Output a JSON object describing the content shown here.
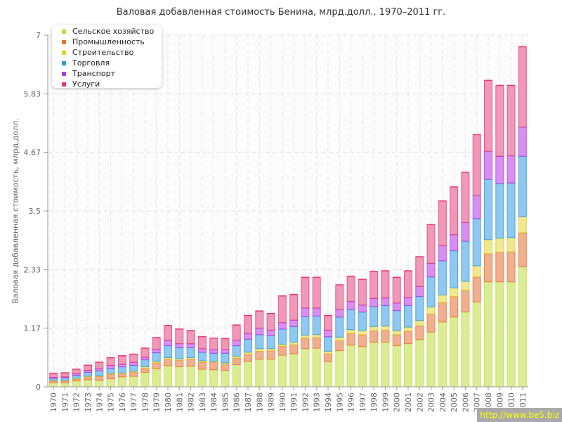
{
  "chart_data": {
    "type": "bar",
    "stacked": true,
    "title": "Валовая добавленная стоимость Бенина, млрд.долл., 1970–2011 гг.",
    "ylabel": "Валовая добавленная стоимость, млрд.долл.",
    "xlabel": "",
    "ylim": [
      0,
      7
    ],
    "yticks": [
      "0",
      "1.17",
      "2.33",
      "3.5",
      "4.67",
      "5.83",
      "7"
    ],
    "grid": true,
    "legend_position": "top-left",
    "categories": [
      "1970",
      "1971",
      "1972",
      "1973",
      "1974",
      "1975",
      "1976",
      "1977",
      "1978",
      "1979",
      "1980",
      "1981",
      "1982",
      "1983",
      "1984",
      "1985",
      "1986",
      "1987",
      "1988",
      "1989",
      "1990",
      "1991",
      "1992",
      "1993",
      "1994",
      "1995",
      "1996",
      "1997",
      "1998",
      "1999",
      "2000",
      "2001",
      "2002",
      "2003",
      "2004",
      "2005",
      "2006",
      "2007",
      "2008",
      "2009",
      "2010",
      "2011"
    ],
    "series": [
      {
        "name": "Сельское хозяйство",
        "color": "#c4dc3c",
        "fill": "#dcec94",
        "values": [
          0.08,
          0.08,
          0.12,
          0.14,
          0.13,
          0.16,
          0.2,
          0.21,
          0.29,
          0.36,
          0.42,
          0.4,
          0.41,
          0.35,
          0.34,
          0.33,
          0.44,
          0.51,
          0.55,
          0.55,
          0.63,
          0.66,
          0.76,
          0.77,
          0.5,
          0.72,
          0.83,
          0.8,
          0.89,
          0.89,
          0.82,
          0.86,
          0.94,
          1.09,
          1.29,
          1.39,
          1.49,
          1.69,
          2.09,
          2.09,
          2.09,
          2.39
        ]
      },
      {
        "name": "Промышленность",
        "color": "#e87030",
        "fill": "#f0b090",
        "values": [
          0.04,
          0.04,
          0.03,
          0.05,
          0.08,
          0.09,
          0.06,
          0.08,
          0.08,
          0.12,
          0.13,
          0.13,
          0.14,
          0.14,
          0.15,
          0.13,
          0.13,
          0.14,
          0.16,
          0.17,
          0.18,
          0.18,
          0.21,
          0.21,
          0.16,
          0.2,
          0.23,
          0.24,
          0.23,
          0.24,
          0.22,
          0.25,
          0.28,
          0.36,
          0.39,
          0.41,
          0.43,
          0.5,
          0.56,
          0.59,
          0.6,
          0.68
        ]
      },
      {
        "name": "Строительство",
        "color": "#e0d030",
        "fill": "#f0e890",
        "values": [
          0.01,
          0.01,
          0.02,
          0.02,
          0.01,
          0.02,
          0.02,
          0.02,
          0.03,
          0.03,
          0.03,
          0.03,
          0.03,
          0.03,
          0.02,
          0.02,
          0.04,
          0.04,
          0.05,
          0.04,
          0.04,
          0.05,
          0.06,
          0.06,
          0.05,
          0.07,
          0.08,
          0.08,
          0.08,
          0.08,
          0.08,
          0.08,
          0.1,
          0.14,
          0.15,
          0.17,
          0.18,
          0.22,
          0.28,
          0.28,
          0.28,
          0.32
        ]
      },
      {
        "name": "Торговля",
        "color": "#3098e0",
        "fill": "#90c8f0",
        "values": [
          0.04,
          0.05,
          0.06,
          0.08,
          0.1,
          0.1,
          0.12,
          0.12,
          0.14,
          0.17,
          0.24,
          0.22,
          0.2,
          0.17,
          0.16,
          0.19,
          0.21,
          0.26,
          0.28,
          0.26,
          0.3,
          0.31,
          0.37,
          0.37,
          0.29,
          0.4,
          0.4,
          0.37,
          0.4,
          0.41,
          0.4,
          0.43,
          0.48,
          0.6,
          0.68,
          0.74,
          0.8,
          0.94,
          1.2,
          1.09,
          1.09,
          1.2
        ]
      },
      {
        "name": "Транспорт",
        "color": "#b040e0",
        "fill": "#d890f0",
        "values": [
          0.02,
          0.02,
          0.03,
          0.04,
          0.04,
          0.06,
          0.05,
          0.06,
          0.05,
          0.07,
          0.1,
          0.08,
          0.08,
          0.07,
          0.07,
          0.07,
          0.11,
          0.11,
          0.13,
          0.11,
          0.13,
          0.13,
          0.17,
          0.16,
          0.13,
          0.15,
          0.16,
          0.14,
          0.16,
          0.15,
          0.15,
          0.16,
          0.2,
          0.27,
          0.3,
          0.32,
          0.37,
          0.46,
          0.56,
          0.54,
          0.54,
          0.58
        ]
      },
      {
        "name": "Услуги",
        "color": "#e83878",
        "fill": "#f098b8",
        "values": [
          0.08,
          0.08,
          0.09,
          0.1,
          0.13,
          0.15,
          0.17,
          0.16,
          0.18,
          0.23,
          0.3,
          0.29,
          0.26,
          0.24,
          0.23,
          0.22,
          0.3,
          0.36,
          0.34,
          0.33,
          0.53,
          0.51,
          0.61,
          0.61,
          0.29,
          0.49,
          0.5,
          0.51,
          0.54,
          0.54,
          0.51,
          0.53,
          0.59,
          0.77,
          0.89,
          0.95,
          1.0,
          1.21,
          1.41,
          1.41,
          1.4,
          1.6
        ]
      }
    ]
  },
  "watermark": "http://www.be5.biz"
}
